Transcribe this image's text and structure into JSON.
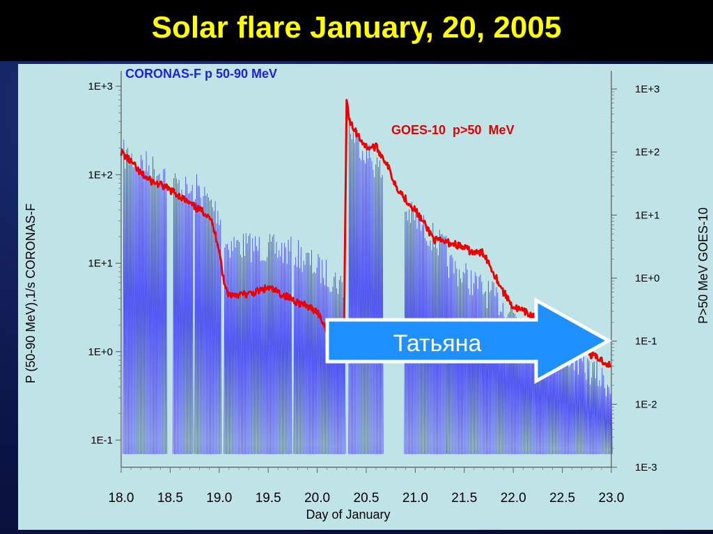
{
  "slide": {
    "title": "Solar flare January, 20, 2005"
  },
  "annotation": {
    "arrow_text": "Татьяна"
  },
  "chart_data": {
    "type": "line",
    "title": "",
    "xlabel": "Day of January",
    "ylabel_left": "P (50-90 MeV),1/s CORONAS-F",
    "ylabel_right": "P>50 MeV GOES-10",
    "xlim": [
      18.0,
      23.0
    ],
    "x_ticks": [
      "18.0",
      "18.5",
      "19.0",
      "19.5",
      "20.0",
      "20.5",
      "21.0",
      "21.5",
      "22.0",
      "22.5",
      "23.0"
    ],
    "y_left": {
      "scale": "log",
      "range": [
        0.1,
        1000
      ],
      "ticks": [
        "1E-1",
        "1E+0",
        "1E+1",
        "1E+2",
        "1E+3"
      ]
    },
    "y_right": {
      "scale": "log",
      "range": [
        0.001,
        1000
      ],
      "ticks": [
        "1E-3",
        "1E-2",
        "1E-1",
        "1E+0",
        "1E+1",
        "1E+2",
        "1E+3"
      ]
    },
    "grid": false,
    "colors": {
      "coronas": "#3b3bef",
      "goes": "#ee0000",
      "arrow_fill": "#1e90ff",
      "panel_background": "#bfe3e6"
    },
    "series": [
      {
        "name": "CORONAS-F p 50-90 MeV",
        "axis": "left",
        "style": "dense-spiky",
        "orbit_passes": [
          {
            "x_start": 18.02,
            "x_end": 18.46,
            "peak": [
              250,
              150
            ]
          },
          {
            "x_start": 18.53,
            "x_end": 18.72,
            "peak": [
              120,
              90
            ]
          },
          {
            "x_start": 18.75,
            "x_end": 19.02,
            "peak": [
              110,
              50
            ]
          },
          {
            "x_start": 19.05,
            "x_end": 19.73,
            "peak": [
              25,
              20
            ]
          },
          {
            "x_start": 19.76,
            "x_end": 20.28,
            "peak": [
              20,
              8
            ]
          },
          {
            "x_start": 20.32,
            "x_end": 20.66,
            "peak": [
              500,
              150
            ]
          },
          {
            "x_start": 20.89,
            "x_end": 21.32,
            "peak": [
              60,
              20
            ]
          },
          {
            "x_start": 21.32,
            "x_end": 23.0,
            "peak": [
              15,
              0.6
            ]
          }
        ],
        "floor": 0.07
      },
      {
        "name": "GOES-10  p>50  MeV",
        "axis": "right",
        "x": [
          18.0,
          18.1,
          18.2,
          18.3,
          18.4,
          18.5,
          18.6,
          18.7,
          18.8,
          18.9,
          19.0,
          19.05,
          19.1,
          19.3,
          19.5,
          19.7,
          19.9,
          20.0,
          20.1,
          20.2,
          20.27,
          20.3,
          20.33,
          20.4,
          20.5,
          20.6,
          20.7,
          20.8,
          20.9,
          21.0,
          21.2,
          21.4,
          21.5,
          21.6,
          21.7,
          21.9,
          22.0,
          22.2,
          22.3,
          22.5,
          22.6,
          22.8,
          22.9,
          23.0
        ],
        "values": [
          100,
          70,
          45,
          35,
          30,
          25,
          20,
          15,
          12,
          10,
          3,
          0.8,
          0.55,
          0.55,
          0.7,
          0.5,
          0.35,
          0.3,
          0.15,
          0.1,
          0.06,
          700,
          300,
          200,
          120,
          120,
          70,
          30,
          18,
          12,
          4,
          3.5,
          3,
          2.5,
          2.5,
          0.6,
          0.35,
          0.25,
          0.15,
          0.08,
          0.1,
          0.06,
          0.05,
          0.04
        ]
      }
    ]
  }
}
